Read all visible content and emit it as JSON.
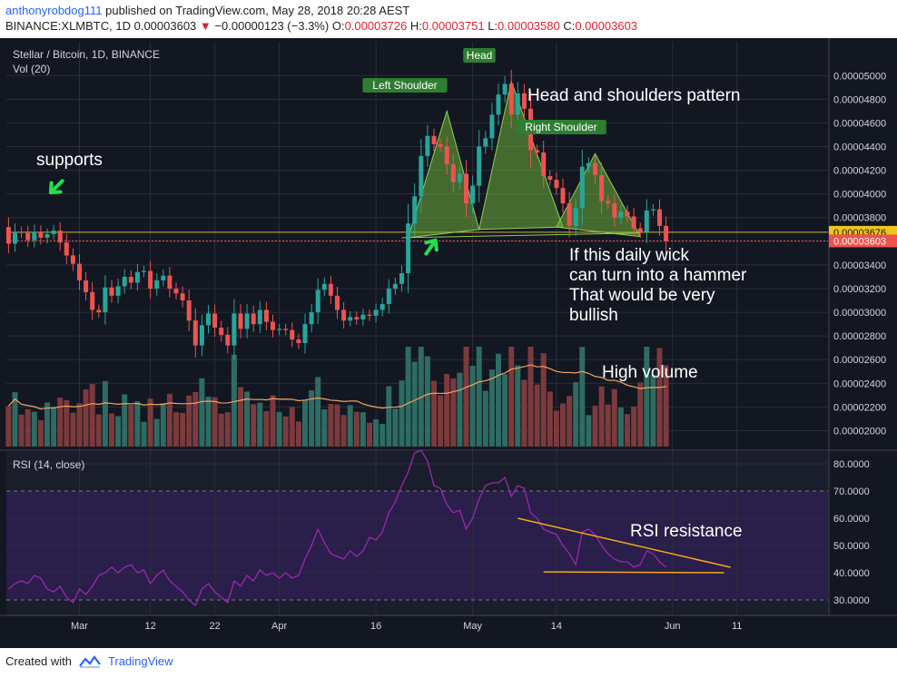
{
  "header": {
    "author": "anthonyrobdog111",
    "published_text": "published on TradingView.com, May 28, 2018 20:28 AEST",
    "symbol": "BINANCE:XLMBTC, 1D",
    "last": "0.00003603",
    "change_arrow": "▼",
    "change": "−0.00000123 (−3.3%)",
    "o_label": "O:",
    "o_value": "0.00003726",
    "h_label": "H:",
    "h_value": "0.00003751",
    "l_label": "L:",
    "l_value": "0.00003580",
    "c_label": "C:",
    "c_value": "0.00003603"
  },
  "footer": {
    "created_with": "Created with",
    "brand": "TradingView"
  },
  "colors": {
    "bg": "#131722",
    "up": "#26a69a",
    "down": "#ef5350",
    "grid": "#2a2e39",
    "text": "#d1d4dc",
    "rsi_line": "#9c27b0",
    "rsi_band": "#2a1e4a",
    "volume_ma": "#f5a25d",
    "support_line": "#d4b12f",
    "pattern_fill": "#6fae3a",
    "label_bg": "#2e7d32",
    "arrow": "#22e04a",
    "annotation_line": "#f5a623",
    "last_price_bg": "#ef5350",
    "prev_price_bg": "#f0c419"
  },
  "chart_data": [
    {
      "type": "candlestick",
      "title": "Stellar / Bitcoin, 1D, BINANCE",
      "volume_label": "Vol (20)",
      "x_tick_labels": [
        "Mar",
        "12",
        "22",
        "Apr",
        "16",
        "May",
        "14",
        "Jun",
        "11"
      ],
      "x_tick_dates": [
        "2018-03-01",
        "2018-03-12",
        "2018-03-22",
        "2018-04-01",
        "2018-04-16",
        "2018-05-01",
        "2018-05-14",
        "2018-06-01",
        "2018-06-11"
      ],
      "y_tick_labels": [
        "0.00002000",
        "0.00002200",
        "0.00002400",
        "0.00002600",
        "0.00002800",
        "0.00003000",
        "0.00003200",
        "0.00003400",
        "0.00003600",
        "0.00003800",
        "0.00004000",
        "0.00004200",
        "0.00004400",
        "0.00004600",
        "0.00004800",
        "0.00005000"
      ],
      "ylim": [
        1.95e-05,
        5.14e-05
      ],
      "price_markers": [
        {
          "label": "0.00003676",
          "value": 3.676e-05,
          "kind": "previous"
        },
        {
          "label": "0.00003603",
          "value": 3.603e-05,
          "kind": "last"
        }
      ],
      "support_level": 3.676e-05,
      "close": [
        3.58e-05,
        3.68e-05,
        3.67e-05,
        3.61e-05,
        3.68e-05,
        3.63e-05,
        3.66e-05,
        3.69e-05,
        3.59e-05,
        3.48e-05,
        3.41e-05,
        3.27e-05,
        3.17e-05,
        3.02e-05,
        3e-05,
        3.21e-05,
        3.14e-05,
        3.22e-05,
        3.3e-05,
        3.25e-05,
        3.34e-05,
        3.35e-05,
        3.2e-05,
        3.27e-05,
        3.31e-05,
        3.2e-05,
        3.16e-05,
        3.1e-05,
        2.93e-05,
        2.72e-05,
        2.89e-05,
        2.99e-05,
        2.87e-05,
        2.81e-05,
        2.72e-05,
        2.99e-05,
        2.86e-05,
        2.99e-05,
        2.9e-05,
        3.02e-05,
        2.92e-05,
        2.85e-05,
        2.86e-05,
        2.85e-05,
        2.77e-05,
        2.74e-05,
        2.9e-05,
        3e-05,
        3.19e-05,
        3.24e-05,
        3.14e-05,
        3.02e-05,
        2.93e-05,
        2.96e-05,
        2.94e-05,
        2.98e-05,
        2.97e-05,
        3.02e-05,
        3.07e-05,
        3.2e-05,
        3.24e-05,
        3.33e-05,
        3.75e-05,
        3.98e-05,
        4.32e-05,
        4.49e-05,
        4.42e-05,
        4.4e-05,
        4.25e-05,
        4.1e-05,
        4.17e-05,
        3.92e-05,
        4.07e-05,
        4.4e-05,
        4.47e-05,
        4.67e-05,
        4.84e-05,
        4.93e-05,
        4.67e-05,
        4.85e-05,
        4.72e-05,
        4.37e-05,
        4.35e-05,
        4.15e-05,
        4.12e-05,
        4.05e-05,
        3.92e-05,
        3.73e-05,
        3.88e-05,
        4.23e-05,
        4.26e-05,
        4.16e-05,
        3.94e-05,
        3.92e-05,
        3.8e-05,
        3.85e-05,
        3.81e-05,
        3.71e-05,
        3.68e-05,
        3.86e-05,
        3.87e-05,
        3.73e-05,
        3.6e-05
      ],
      "series": [
        {
          "name": "Vol (20)",
          "note": "volume panel (relative scale, no axis)"
        },
        {
          "name": "RSI (14, close)"
        }
      ],
      "annotations": [
        {
          "text": "supports"
        },
        {
          "text": "Left Shoulder"
        },
        {
          "text": "Head"
        },
        {
          "text": "Right Shoulder"
        },
        {
          "text": "Head and shoulders pattern"
        },
        {
          "text": "If this daily wick\ncan turn into a hammer\nThat would be very\nbullish"
        },
        {
          "text": "High volume"
        }
      ]
    },
    {
      "type": "line",
      "title": "RSI (14, close)",
      "y_tick_labels": [
        "30.0000",
        "40.0000",
        "50.0000",
        "60.0000",
        "70.0000",
        "80.0000"
      ],
      "ylim": [
        26,
        86
      ],
      "band": [
        30,
        70
      ],
      "values": [
        34,
        36,
        37,
        36,
        39,
        38,
        34,
        33,
        35,
        31,
        29,
        34,
        32,
        35,
        39,
        40,
        42,
        40,
        42,
        43,
        40,
        41,
        36,
        39,
        41,
        37,
        35,
        33,
        30,
        28,
        34,
        36,
        33,
        31,
        29,
        37,
        35,
        39,
        37,
        41,
        39,
        40,
        38,
        40,
        38,
        39,
        45,
        50,
        56,
        51,
        47,
        46,
        45,
        48,
        46,
        48,
        53,
        52,
        55,
        62,
        66,
        72,
        77,
        84,
        85,
        81,
        72,
        71,
        65,
        62,
        63,
        56,
        60,
        67,
        72,
        73,
        73,
        75,
        68,
        72,
        71,
        62,
        60,
        56,
        55,
        54,
        50,
        47,
        43,
        55,
        56,
        54,
        50,
        47,
        45,
        44,
        44,
        42,
        43,
        48,
        47,
        44,
        42
      ],
      "annotations": [
        {
          "text": "RSI resistance"
        }
      ]
    }
  ]
}
